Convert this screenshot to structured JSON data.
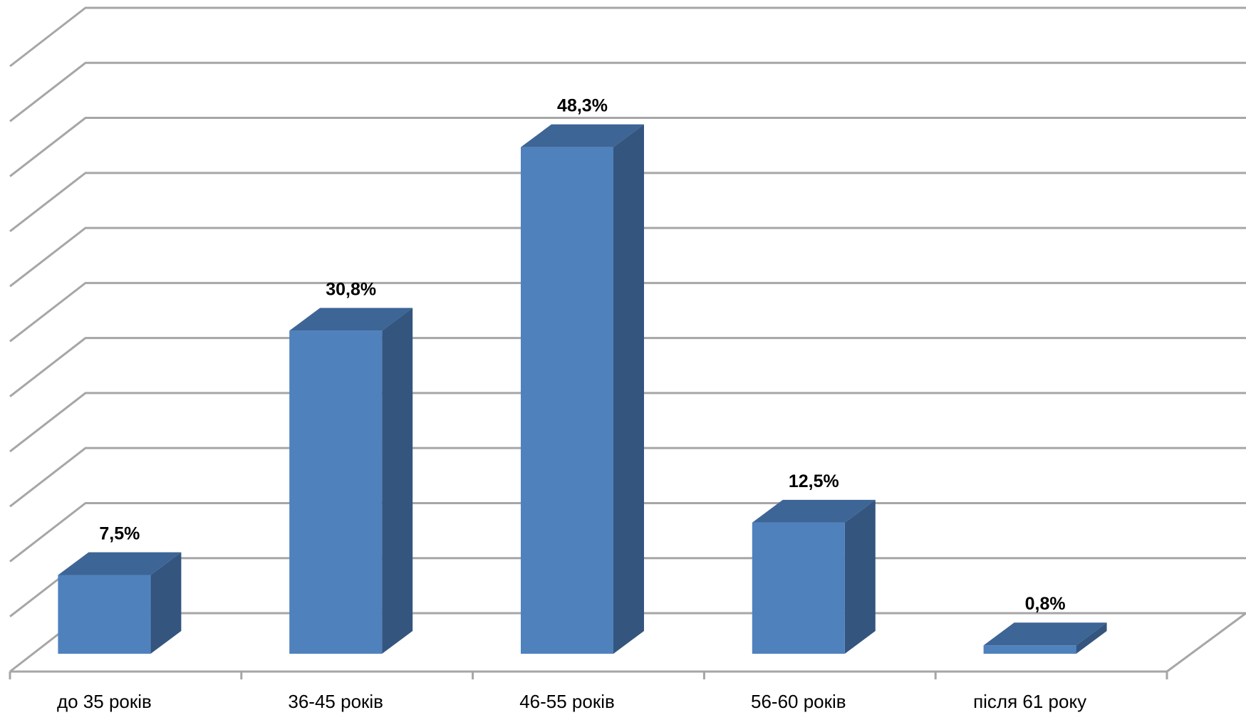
{
  "chart_data": {
    "type": "bar",
    "style": "3d-column",
    "title": "",
    "xlabel": "",
    "ylabel": "",
    "categories": [
      "до 35 років",
      "36-45 років",
      "46-55 років",
      "56-60 років",
      "після 61 року"
    ],
    "values": [
      7.5,
      30.8,
      48.3,
      12.5,
      0.8
    ],
    "value_labels": [
      "7,5%",
      "30,8%",
      "48,3%",
      "12,5%",
      "0,8%"
    ],
    "ylim": [
      0,
      55
    ],
    "y_gridline_step": 5,
    "grid": true,
    "legend": "none",
    "colors": {
      "bar_front": "#4f81bd",
      "bar_side": "#34557e",
      "bar_top": "#3d6596",
      "grid": "#a6a6a6"
    }
  }
}
